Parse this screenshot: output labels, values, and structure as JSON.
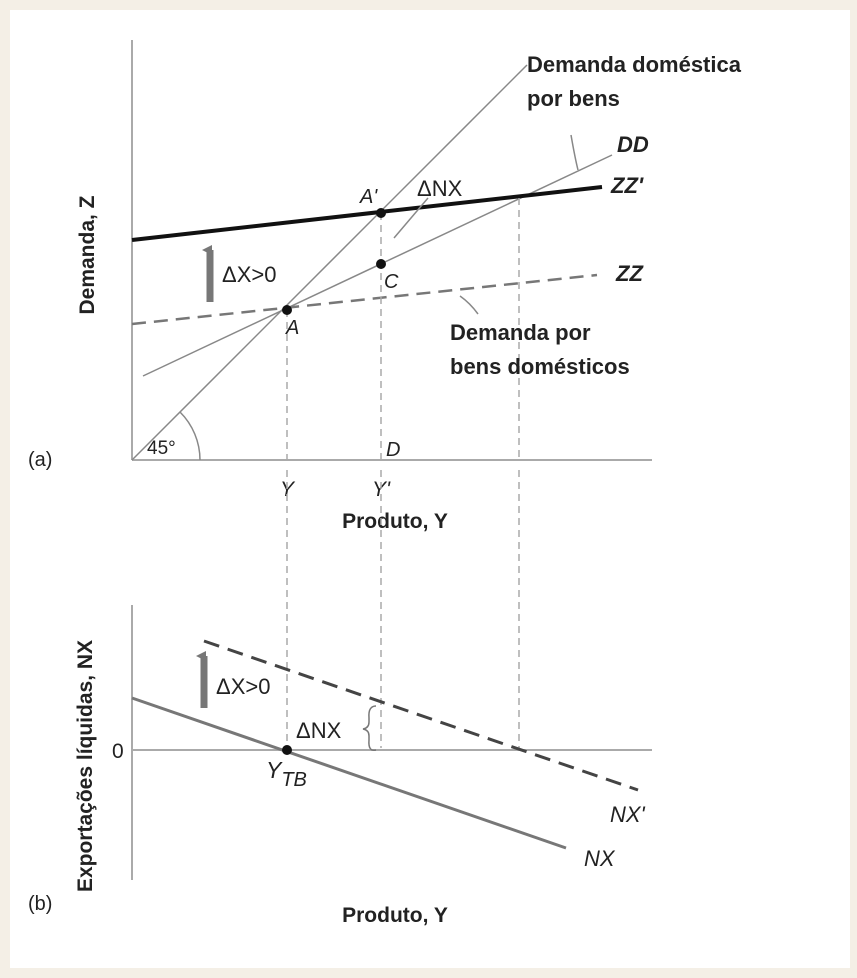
{
  "panel_a": {
    "tag": "(a)",
    "y_axis_label": "Demanda, Z",
    "x_axis_label": "Produto, Y",
    "angle_label": "45°",
    "curves": {
      "dd": "DD",
      "zz_prime": "ZZ'",
      "zz": "ZZ"
    },
    "points": {
      "a": "A",
      "a_prime": "A'",
      "c": "C",
      "d": "D"
    },
    "x_ticks": {
      "y": "Y",
      "y_prime": "Y'"
    },
    "delta_nx": "ΔNX",
    "delta_x": "ΔX>0",
    "annot_domestica": [
      "Demanda doméstica",
      "por bens"
    ],
    "annot_domesticos": [
      "Demanda por",
      "bens domésticos"
    ]
  },
  "panel_b": {
    "tag": "(b)",
    "y_axis_label": "Exportações líquidas, NX",
    "x_axis_label": "Produto, Y",
    "zero": "0",
    "y_tb_main": "Y",
    "y_tb_sub": "TB",
    "delta_x": "ΔX>0",
    "delta_nx": "ΔNX",
    "curves": {
      "nx_prime": "NX'",
      "nx": "NX"
    }
  },
  "colors": {
    "background": "#f4efe6",
    "panel": "#ffffff",
    "axis": "#aaaaaa",
    "thin_line": "#888888",
    "thick_line": "#111111",
    "arrow": "#777777"
  }
}
